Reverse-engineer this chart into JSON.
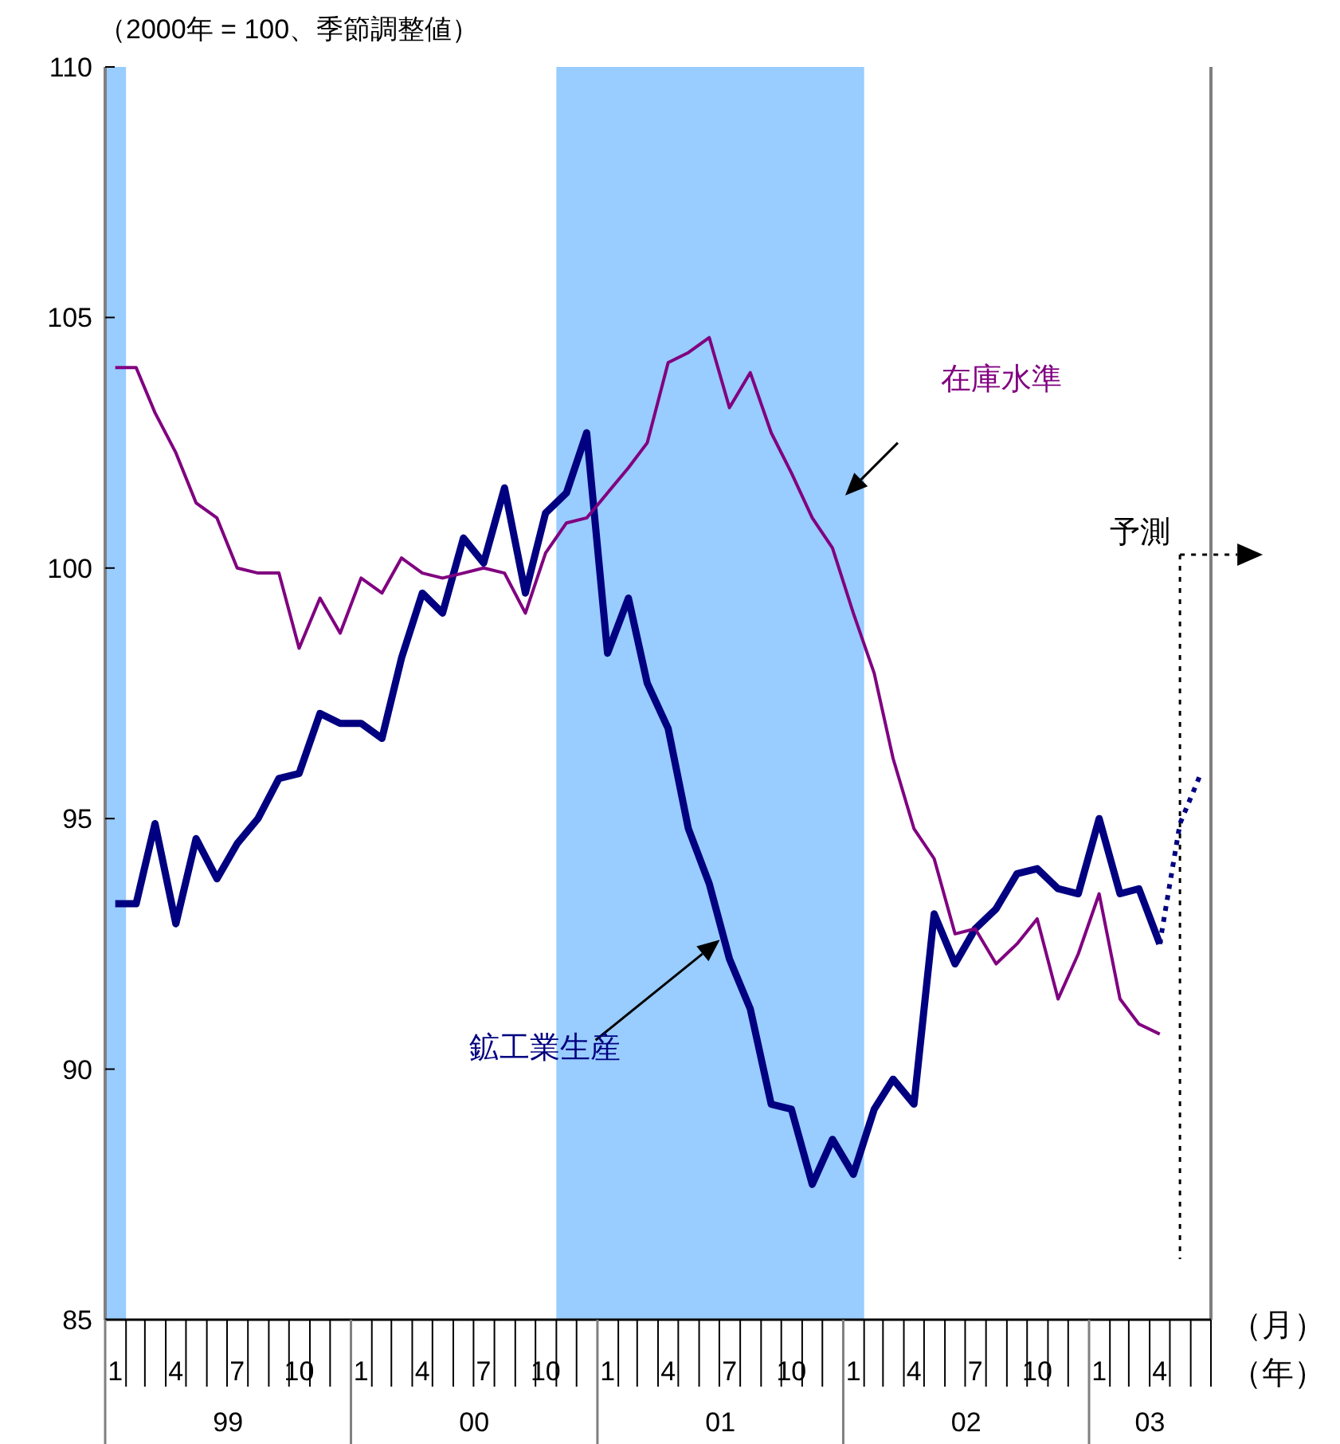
{
  "chart_data": {
    "type": "line",
    "ylabel": "（2000年 = 100、季節調整値）",
    "x": [
      "1999-01-16",
      "1999-02-16",
      "1999-03-16",
      "1999-04-16",
      "1999-05-16",
      "1999-06-16",
      "1999-07-16",
      "1999-08-16",
      "1999-09-16",
      "1999-10-16",
      "1999-11-16",
      "1999-12-16",
      "2000-01-16",
      "2000-02-16",
      "2000-03-16",
      "2000-04-16",
      "2000-05-16",
      "2000-06-16",
      "2000-07-16",
      "2000-08-16",
      "2000-09-16",
      "2000-10-16",
      "2000-11-16",
      "2000-12-16",
      "2001-01-16",
      "2001-02-16",
      "2001-03-16",
      "2001-04-16",
      "2001-05-16",
      "2001-06-16",
      "2001-07-16",
      "2001-08-16",
      "2001-09-16",
      "2001-10-16",
      "2001-11-16",
      "2001-12-16",
      "2002-01-16",
      "2002-02-16",
      "2002-03-16",
      "2002-04-16",
      "2002-05-16",
      "2002-06-16",
      "2002-07-16",
      "2002-08-16",
      "2002-09-16",
      "2002-10-16",
      "2002-11-16",
      "2002-12-16",
      "2003-01-16",
      "2003-02-16",
      "2003-03-16",
      "2003-04-16"
    ],
    "series": [
      {
        "name": "鉱工業生産",
        "color": "#000080",
        "values": [
          93.3,
          93.3,
          94.9,
          92.9,
          94.6,
          93.8,
          94.5,
          95.0,
          95.8,
          95.9,
          97.1,
          96.9,
          96.9,
          96.6,
          98.2,
          99.5,
          99.1,
          100.6,
          100.1,
          101.6,
          99.5,
          101.1,
          101.5,
          102.7,
          98.3,
          99.4,
          97.7,
          96.8,
          94.8,
          93.7,
          92.2,
          91.2,
          89.3,
          89.2,
          87.7,
          88.6,
          87.9,
          89.2,
          89.8,
          89.3,
          93.1,
          92.1,
          92.8,
          93.2,
          93.9,
          94.0,
          93.6,
          93.5,
          95.0,
          93.5,
          93.6,
          92.5
        ]
      },
      {
        "name": "在庫水準",
        "color": "#800080",
        "values": [
          104.0,
          104.0,
          103.1,
          102.3,
          101.3,
          101.0,
          100.0,
          99.9,
          99.9,
          98.4,
          99.4,
          98.7,
          99.8,
          99.5,
          100.2,
          99.9,
          99.8,
          99.9,
          100.0,
          99.9,
          99.1,
          100.3,
          100.9,
          101.0,
          101.5,
          102.0,
          102.5,
          104.1,
          104.3,
          104.6,
          103.2,
          103.9,
          102.7,
          101.9,
          101.0,
          100.4,
          99.1,
          97.9,
          96.2,
          94.8,
          94.2,
          92.7,
          92.8,
          92.1,
          92.5,
          93.0,
          91.4,
          92.3,
          93.5,
          91.4,
          90.9,
          90.7
        ]
      },
      {
        "type": "line",
        "color": "#000080",
        "line_style": "dotted",
        "x": [
          "2003-04-16",
          "2003-05-16",
          "2003-06-16"
        ],
        "values": [
          92.5,
          94.9,
          95.9
        ]
      }
    ],
    "xlim": [
      "1999-01-01",
      "2003-07-01"
    ],
    "xticks": [
      {
        "value": "1999-01-16",
        "label": "1"
      },
      {
        "value": "1999-04-16",
        "label": "4"
      },
      {
        "value": "1999-07-16",
        "label": "7"
      },
      {
        "value": "1999-10-16",
        "label": "10"
      },
      {
        "value": "2000-01-16",
        "label": "1"
      },
      {
        "value": "2000-04-16",
        "label": "4"
      },
      {
        "value": "2000-07-16",
        "label": "7"
      },
      {
        "value": "2000-10-16",
        "label": "10"
      },
      {
        "value": "2001-01-16",
        "label": "1"
      },
      {
        "value": "2001-04-16",
        "label": "4"
      },
      {
        "value": "2001-07-16",
        "label": "7"
      },
      {
        "value": "2001-10-16",
        "label": "10"
      },
      {
        "value": "2002-01-16",
        "label": "1"
      },
      {
        "value": "2002-04-16",
        "label": "4"
      },
      {
        "value": "2002-07-16",
        "label": "7"
      },
      {
        "value": "2002-10-16",
        "label": "10"
      },
      {
        "value": "2003-01-16",
        "label": "1"
      },
      {
        "value": "2003-04-16",
        "label": "4"
      }
    ],
    "ylim": [
      85,
      110
    ],
    "yticks": [
      85,
      90,
      95,
      100,
      105,
      110
    ],
    "bands": [
      {
        "axis": "x",
        "from": "1999-01-01",
        "to": "1999-02-01",
        "color": "#99ccff"
      },
      {
        "axis": "x",
        "from": "2000-11-01",
        "to": "2002-02-01",
        "color": "#99ccff"
      }
    ],
    "ref_lines": [
      {
        "axis": "x",
        "value": "2003-05-16",
        "label": "予測",
        "line_style": "dotted",
        "color": "#000000"
      }
    ],
    "annotations": [
      "（月）",
      "（年）",
      "99",
      "00",
      "01",
      "02",
      "03"
    ],
    "marker": "none",
    "line_style": "solid"
  }
}
